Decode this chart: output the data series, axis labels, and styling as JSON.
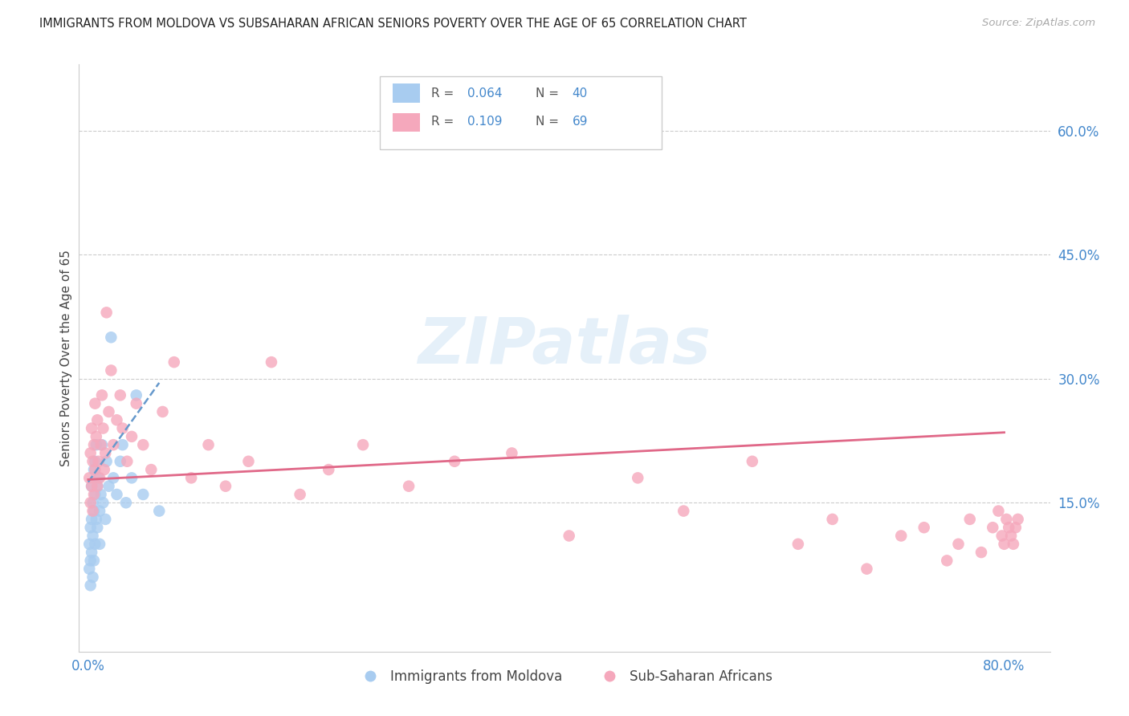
{
  "title": "IMMIGRANTS FROM MOLDOVA VS SUBSAHARAN AFRICAN SENIORS POVERTY OVER THE AGE OF 65 CORRELATION CHART",
  "source": "Source: ZipAtlas.com",
  "ylabel": "Seniors Poverty Over the Age of 65",
  "right_yticks": [
    "60.0%",
    "45.0%",
    "30.0%",
    "15.0%"
  ],
  "right_ytick_vals": [
    0.6,
    0.45,
    0.3,
    0.15
  ],
  "legend_r1": "0.064",
  "legend_n1": "40",
  "legend_r2": "0.109",
  "legend_n2": "69",
  "color_blue": "#A8CCF0",
  "color_pink": "#F5A8BC",
  "color_trendline_blue": "#6699CC",
  "color_trendline_pink": "#E06888",
  "color_axis_blue": "#4488CC",
  "color_text_dark": "#444444",
  "color_grid": "#cccccc",
  "watermark": "ZIPatlas",
  "xlim_min": -0.008,
  "xlim_max": 0.84,
  "ylim_min": -0.03,
  "ylim_max": 0.68,
  "moldova_x": [
    0.001,
    0.001,
    0.002,
    0.002,
    0.002,
    0.003,
    0.003,
    0.003,
    0.004,
    0.004,
    0.004,
    0.005,
    0.005,
    0.005,
    0.006,
    0.006,
    0.006,
    0.007,
    0.007,
    0.008,
    0.008,
    0.009,
    0.01,
    0.01,
    0.011,
    0.012,
    0.013,
    0.015,
    0.016,
    0.018,
    0.02,
    0.022,
    0.025,
    0.028,
    0.03,
    0.033,
    0.038,
    0.042,
    0.048,
    0.062
  ],
  "moldova_y": [
    0.1,
    0.07,
    0.12,
    0.08,
    0.05,
    0.17,
    0.13,
    0.09,
    0.15,
    0.11,
    0.06,
    0.19,
    0.14,
    0.08,
    0.2,
    0.16,
    0.1,
    0.22,
    0.13,
    0.17,
    0.12,
    0.18,
    0.14,
    0.1,
    0.16,
    0.22,
    0.15,
    0.13,
    0.2,
    0.17,
    0.35,
    0.18,
    0.16,
    0.2,
    0.22,
    0.15,
    0.18,
    0.28,
    0.16,
    0.14
  ],
  "subsaharan_x": [
    0.001,
    0.002,
    0.002,
    0.003,
    0.003,
    0.004,
    0.004,
    0.005,
    0.005,
    0.006,
    0.006,
    0.007,
    0.008,
    0.008,
    0.009,
    0.01,
    0.011,
    0.012,
    0.013,
    0.014,
    0.015,
    0.016,
    0.018,
    0.02,
    0.022,
    0.025,
    0.028,
    0.03,
    0.034,
    0.038,
    0.042,
    0.048,
    0.055,
    0.065,
    0.075,
    0.09,
    0.105,
    0.12,
    0.14,
    0.16,
    0.185,
    0.21,
    0.24,
    0.28,
    0.32,
    0.37,
    0.42,
    0.48,
    0.52,
    0.58,
    0.62,
    0.65,
    0.68,
    0.71,
    0.73,
    0.75,
    0.76,
    0.77,
    0.78,
    0.79,
    0.795,
    0.798,
    0.8,
    0.802,
    0.804,
    0.806,
    0.808,
    0.81,
    0.812
  ],
  "subsaharan_y": [
    0.18,
    0.21,
    0.15,
    0.24,
    0.17,
    0.2,
    0.14,
    0.22,
    0.16,
    0.27,
    0.19,
    0.23,
    0.17,
    0.25,
    0.2,
    0.18,
    0.22,
    0.28,
    0.24,
    0.19,
    0.21,
    0.38,
    0.26,
    0.31,
    0.22,
    0.25,
    0.28,
    0.24,
    0.2,
    0.23,
    0.27,
    0.22,
    0.19,
    0.26,
    0.32,
    0.18,
    0.22,
    0.17,
    0.2,
    0.32,
    0.16,
    0.19,
    0.22,
    0.17,
    0.2,
    0.21,
    0.11,
    0.18,
    0.14,
    0.2,
    0.1,
    0.13,
    0.07,
    0.11,
    0.12,
    0.08,
    0.1,
    0.13,
    0.09,
    0.12,
    0.14,
    0.11,
    0.1,
    0.13,
    0.12,
    0.11,
    0.1,
    0.12,
    0.13
  ]
}
